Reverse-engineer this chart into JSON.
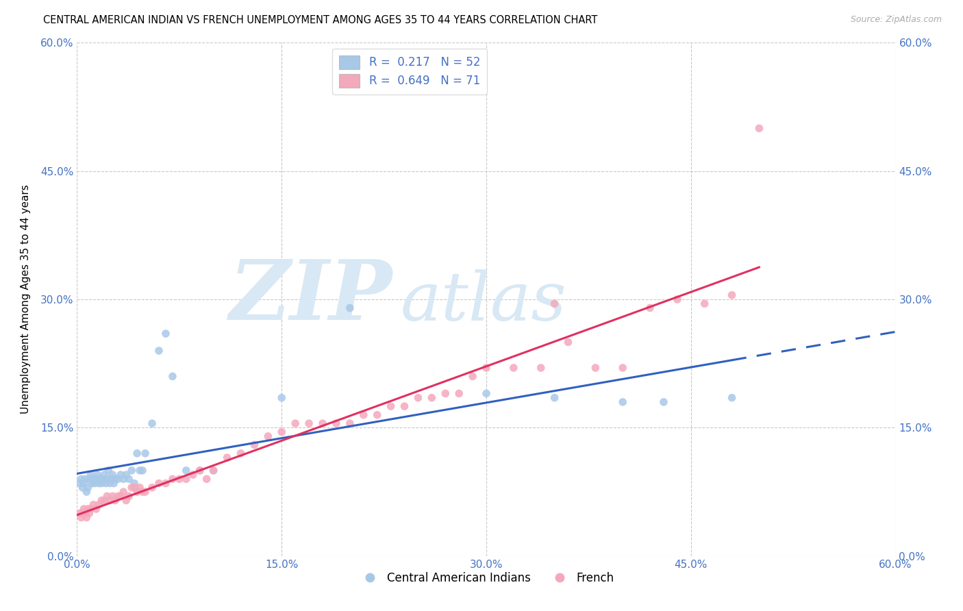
{
  "title": "CENTRAL AMERICAN INDIAN VS FRENCH UNEMPLOYMENT AMONG AGES 35 TO 44 YEARS CORRELATION CHART",
  "source": "Source: ZipAtlas.com",
  "ylabel": "Unemployment Among Ages 35 to 44 years",
  "xmin": 0.0,
  "xmax": 0.6,
  "ymin": 0.0,
  "ymax": 0.6,
  "tick_vals": [
    0.0,
    0.15,
    0.3,
    0.45,
    0.6
  ],
  "tick_labels": [
    "0.0%",
    "15.0%",
    "30.0%",
    "45.0%",
    "60.0%"
  ],
  "color_blue": "#a8c8e8",
  "color_pink": "#f4a8bc",
  "color_blue_line": "#3060c0",
  "color_pink_line": "#e03060",
  "legend_label1": "Central American Indians",
  "legend_label2": "French",
  "blue_x": [
    0.002,
    0.003,
    0.004,
    0.005,
    0.006,
    0.007,
    0.008,
    0.009,
    0.01,
    0.011,
    0.012,
    0.013,
    0.014,
    0.015,
    0.016,
    0.017,
    0.018,
    0.019,
    0.02,
    0.021,
    0.022,
    0.023,
    0.024,
    0.025,
    0.026,
    0.027,
    0.028,
    0.03,
    0.032,
    0.034,
    0.036,
    0.038,
    0.04,
    0.042,
    0.044,
    0.046,
    0.048,
    0.05,
    0.055,
    0.06,
    0.065,
    0.07,
    0.08,
    0.09,
    0.1,
    0.15,
    0.2,
    0.3,
    0.35,
    0.4,
    0.43,
    0.48
  ],
  "blue_y": [
    0.085,
    0.09,
    0.08,
    0.085,
    0.09,
    0.075,
    0.08,
    0.09,
    0.095,
    0.085,
    0.09,
    0.085,
    0.09,
    0.095,
    0.085,
    0.09,
    0.085,
    0.09,
    0.095,
    0.085,
    0.09,
    0.1,
    0.085,
    0.09,
    0.095,
    0.085,
    0.09,
    0.09,
    0.095,
    0.09,
    0.095,
    0.09,
    0.1,
    0.085,
    0.12,
    0.1,
    0.1,
    0.12,
    0.155,
    0.24,
    0.26,
    0.21,
    0.1,
    0.1,
    0.1,
    0.185,
    0.29,
    0.19,
    0.185,
    0.18,
    0.18,
    0.185
  ],
  "pink_x": [
    0.002,
    0.003,
    0.004,
    0.005,
    0.006,
    0.007,
    0.008,
    0.009,
    0.01,
    0.012,
    0.014,
    0.016,
    0.018,
    0.02,
    0.022,
    0.024,
    0.026,
    0.028,
    0.03,
    0.032,
    0.034,
    0.036,
    0.038,
    0.04,
    0.042,
    0.044,
    0.046,
    0.048,
    0.05,
    0.055,
    0.06,
    0.065,
    0.07,
    0.075,
    0.08,
    0.085,
    0.09,
    0.095,
    0.1,
    0.11,
    0.12,
    0.13,
    0.14,
    0.15,
    0.16,
    0.17,
    0.18,
    0.19,
    0.2,
    0.21,
    0.22,
    0.23,
    0.24,
    0.25,
    0.26,
    0.27,
    0.28,
    0.29,
    0.3,
    0.32,
    0.34,
    0.36,
    0.38,
    0.4,
    0.42,
    0.44,
    0.46,
    0.48,
    0.5,
    0.35
  ],
  "pink_y": [
    0.05,
    0.045,
    0.05,
    0.055,
    0.05,
    0.045,
    0.055,
    0.05,
    0.055,
    0.06,
    0.055,
    0.06,
    0.065,
    0.065,
    0.07,
    0.065,
    0.07,
    0.065,
    0.07,
    0.07,
    0.075,
    0.065,
    0.07,
    0.08,
    0.08,
    0.075,
    0.08,
    0.075,
    0.075,
    0.08,
    0.085,
    0.085,
    0.09,
    0.09,
    0.09,
    0.095,
    0.1,
    0.09,
    0.1,
    0.115,
    0.12,
    0.13,
    0.14,
    0.145,
    0.155,
    0.155,
    0.155,
    0.155,
    0.155,
    0.165,
    0.165,
    0.175,
    0.175,
    0.185,
    0.185,
    0.19,
    0.19,
    0.21,
    0.22,
    0.22,
    0.22,
    0.25,
    0.22,
    0.22,
    0.29,
    0.3,
    0.295,
    0.305,
    0.5,
    0.295
  ]
}
